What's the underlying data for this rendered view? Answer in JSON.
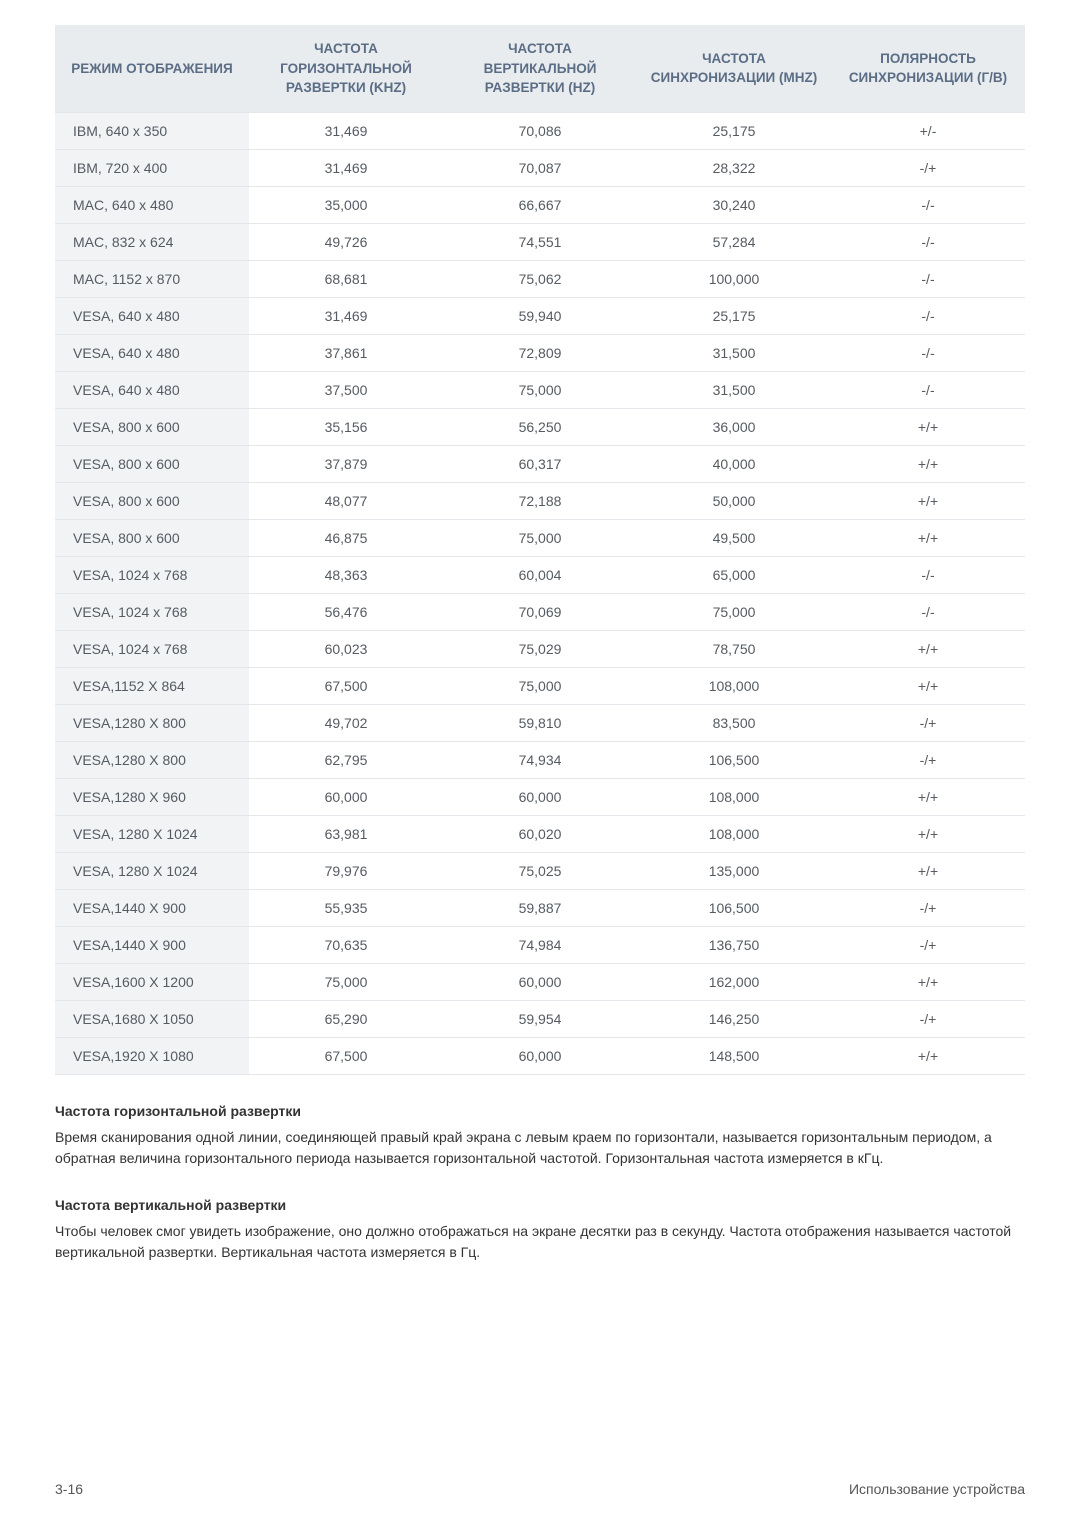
{
  "table": {
    "headers": [
      "РЕЖИМ ОТОБРАЖЕНИЯ",
      "ЧАСТОТА ГОРИЗОНТАЛЬНОЙ РАЗВЕРТКИ (KHZ)",
      "ЧАСТОТА ВЕРТИКАЛЬНОЙ РАЗВЕРТКИ (HZ)",
      "ЧАСТОТА СИНХРОНИЗАЦИИ (MHZ)",
      "ПОЛЯРНОСТЬ СИНХРОНИЗАЦИИ (Г/В)"
    ],
    "rows": [
      [
        "IBM, 640 x 350",
        "31,469",
        "70,086",
        "25,175",
        "+/-"
      ],
      [
        "IBM, 720 x 400",
        "31,469",
        "70,087",
        "28,322",
        "-/+"
      ],
      [
        "MAC, 640 x 480",
        "35,000",
        "66,667",
        "30,240",
        "-/-"
      ],
      [
        "MAC, 832 x 624",
        "49,726",
        "74,551",
        "57,284",
        "-/-"
      ],
      [
        "MAC, 1152 x 870",
        "68,681",
        "75,062",
        "100,000",
        "-/-"
      ],
      [
        "VESA, 640 x 480",
        "31,469",
        "59,940",
        "25,175",
        "-/-"
      ],
      [
        "VESA, 640 x 480",
        "37,861",
        "72,809",
        "31,500",
        "-/-"
      ],
      [
        "VESA, 640 x 480",
        "37,500",
        "75,000",
        "31,500",
        "-/-"
      ],
      [
        "VESA, 800 x 600",
        "35,156",
        "56,250",
        "36,000",
        "+/+"
      ],
      [
        "VESA, 800 x 600",
        "37,879",
        "60,317",
        "40,000",
        "+/+"
      ],
      [
        "VESA, 800 x 600",
        "48,077",
        "72,188",
        "50,000",
        "+/+"
      ],
      [
        "VESA, 800 x 600",
        "46,875",
        "75,000",
        "49,500",
        "+/+"
      ],
      [
        "VESA, 1024 x 768",
        "48,363",
        "60,004",
        "65,000",
        "-/-"
      ],
      [
        "VESA, 1024 x 768",
        "56,476",
        "70,069",
        "75,000",
        "-/-"
      ],
      [
        "VESA, 1024 x 768",
        "60,023",
        "75,029",
        "78,750",
        "+/+"
      ],
      [
        "VESA,1152 X 864",
        "67,500",
        "75,000",
        "108,000",
        "+/+"
      ],
      [
        "VESA,1280 X 800",
        "49,702",
        "59,810",
        "83,500",
        "-/+"
      ],
      [
        "VESA,1280 X 800",
        "62,795",
        "74,934",
        "106,500",
        "-/+"
      ],
      [
        "VESA,1280 X 960",
        "60,000",
        "60,000",
        "108,000",
        "+/+"
      ],
      [
        "VESA, 1280 X 1024",
        "63,981",
        "60,020",
        "108,000",
        "+/+"
      ],
      [
        "VESA, 1280 X 1024",
        "79,976",
        "75,025",
        "135,000",
        "+/+"
      ],
      [
        "VESA,1440 X 900",
        "55,935",
        "59,887",
        "106,500",
        "-/+"
      ],
      [
        "VESA,1440 X 900",
        "70,635",
        "74,984",
        "136,750",
        "-/+"
      ],
      [
        "VESA,1600 X 1200",
        "75,000",
        "60,000",
        "162,000",
        "+/+"
      ],
      [
        "VESA,1680 X 1050",
        "65,290",
        "59,954",
        "146,250",
        "-/+"
      ],
      [
        "VESA,1920 X 1080",
        "67,500",
        "60,000",
        "148,500",
        "+/+"
      ]
    ]
  },
  "sections": [
    {
      "title": "Частота горизонтальной развертки",
      "body": "Время сканирования одной линии, соединяющей правый край экрана с левым краем по горизонтали, называется горизонтальным периодом, а обратная величина горизонтального периода называется горизонтальной частотой. Горизонтальная частота измеряется в кГц."
    },
    {
      "title": "Частота вертикальной развертки",
      "body": "Чтобы человек смог увидеть изображение, оно должно отображаться на экране десятки раз в секунду. Частота отображения называется частотой вертикальной развертки. Вертикальная частота измеряется в Гц."
    }
  ],
  "footer": {
    "left": "3-16",
    "right": "Использование устройства"
  }
}
